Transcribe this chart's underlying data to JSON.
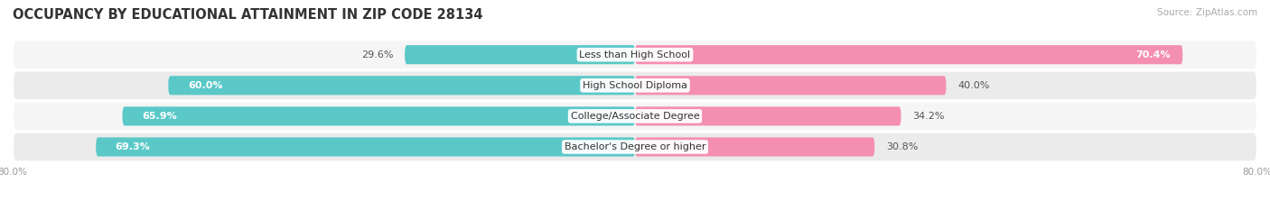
{
  "title": "OCCUPANCY BY EDUCATIONAL ATTAINMENT IN ZIP CODE 28134",
  "source": "Source: ZipAtlas.com",
  "categories": [
    "Less than High School",
    "High School Diploma",
    "College/Associate Degree",
    "Bachelor's Degree or higher"
  ],
  "owner_pct": [
    29.6,
    60.0,
    65.9,
    69.3
  ],
  "renter_pct": [
    70.4,
    40.0,
    34.2,
    30.8
  ],
  "owner_color": "#5bc8c8",
  "renter_color": "#f48fb1",
  "background_color": "#ffffff",
  "row_bg_even": "#f5f5f5",
  "row_bg_odd": "#ebebeb",
  "title_fontsize": 10.5,
  "source_fontsize": 7.5,
  "label_fontsize": 8.0,
  "cat_fontsize": 8.0,
  "legend_fontsize": 8.0,
  "axis_label_fontsize": 7.5,
  "xlim_left": -80.0,
  "xlim_right": 80.0,
  "bar_height": 0.62
}
